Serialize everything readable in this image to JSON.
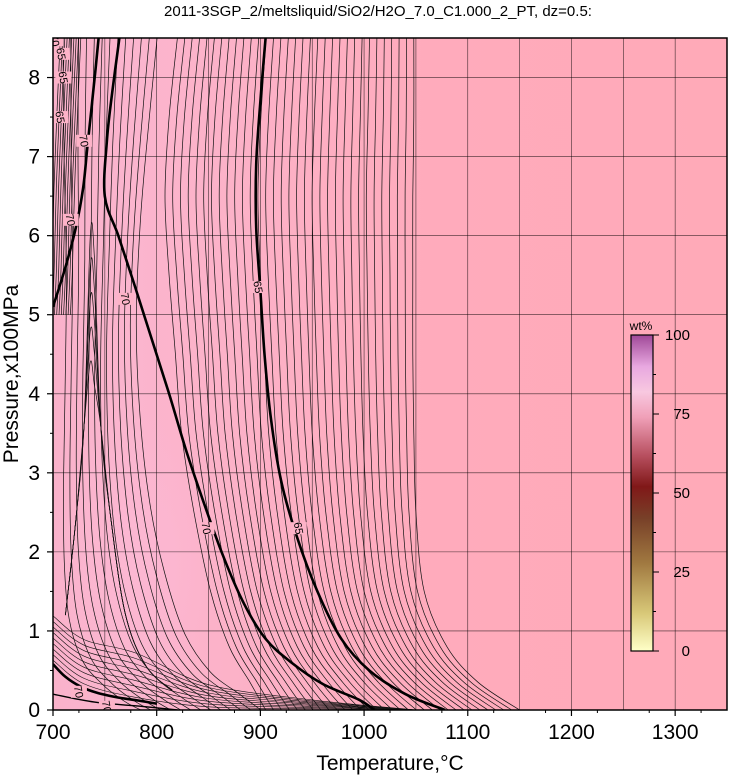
{
  "chart_data": {
    "type": "contour",
    "title": "2011-3SGP_2/meltsliquid/SiO2/H2O_7.0_C1.000_2_PT, dz=0.5:",
    "xlabel": "Temperature,°C",
    "ylabel": "Pressure,x100MPa",
    "xlim": [
      700,
      1350
    ],
    "ylim": [
      0,
      8.5
    ],
    "x_ticks": [
      "700",
      "800",
      "900",
      "1000",
      "1100",
      "1200",
      "1300"
    ],
    "y_ticks": [
      "0",
      "1",
      "2",
      "3",
      "4",
      "5",
      "6",
      "7",
      "8"
    ],
    "grid": true,
    "contour_interval": 0.5,
    "colorbar": {
      "label": "wt%",
      "range": [
        0,
        100
      ],
      "ticks": [
        "0",
        "25",
        "50",
        "75",
        "100"
      ],
      "placement": "right-inside"
    },
    "contours": [
      {
        "label": "70",
        "style": "bold",
        "points": [
          [
            700,
            5.1
          ],
          [
            712,
            5.6
          ],
          [
            722,
            6.1
          ],
          [
            729,
            6.6
          ],
          [
            733,
            7.1
          ],
          [
            737,
            7.6
          ],
          [
            741,
            8.1
          ],
          [
            744,
            8.5
          ]
        ]
      },
      {
        "label": "70",
        "style": "bold",
        "points": [
          [
            764,
            8.5
          ],
          [
            757,
            7.8
          ],
          [
            752,
            7.2
          ],
          [
            750,
            6.5
          ],
          [
            763,
            6.0
          ],
          [
            778,
            5.4
          ],
          [
            795,
            4.7
          ],
          [
            812,
            4.0
          ],
          [
            828,
            3.3
          ],
          [
            846,
            2.6
          ],
          [
            864,
            1.95
          ],
          [
            884,
            1.35
          ],
          [
            905,
            0.9
          ],
          [
            930,
            0.6
          ],
          [
            960,
            0.33
          ],
          [
            995,
            0.13
          ],
          [
            1010,
            0.0
          ]
        ]
      },
      {
        "label": "65",
        "style": "bold",
        "points": [
          [
            905,
            8.5
          ],
          [
            900,
            7.7
          ],
          [
            896,
            6.9
          ],
          [
            896,
            6.1
          ],
          [
            900,
            5.3
          ],
          [
            904,
            4.5
          ],
          [
            910,
            3.7
          ],
          [
            920,
            2.9
          ],
          [
            935,
            2.2
          ],
          [
            955,
            1.5
          ],
          [
            978,
            0.9
          ],
          [
            1005,
            0.5
          ],
          [
            1040,
            0.2
          ],
          [
            1078,
            0.0
          ]
        ]
      },
      {
        "label": "70",
        "style": "bold",
        "points": [
          [
            700,
            0.58
          ],
          [
            712,
            0.42
          ],
          [
            726,
            0.3
          ],
          [
            742,
            0.22
          ],
          [
            762,
            0.16
          ],
          [
            782,
            0.12
          ],
          [
            800,
            0.08
          ]
        ]
      },
      {
        "label": "70",
        "style": "normal",
        "points": [
          [
            700,
            0.2
          ],
          [
            740,
            0.1
          ],
          [
            790,
            0.04
          ],
          [
            820,
            0.0
          ]
        ]
      }
    ],
    "contour_labels": [
      {
        "text": "70",
        "x": 702,
        "y": 8.47
      },
      {
        "text": "65",
        "x": 708,
        "y": 8.3
      },
      {
        "text": "65",
        "x": 710,
        "y": 8.0
      },
      {
        "text": "65",
        "x": 707,
        "y": 7.5
      },
      {
        "text": "70",
        "x": 730,
        "y": 7.2
      },
      {
        "text": "70",
        "x": 717,
        "y": 6.2
      },
      {
        "text": "70",
        "x": 770,
        "y": 5.2
      },
      {
        "text": "65",
        "x": 898,
        "y": 5.35
      },
      {
        "text": "70",
        "x": 848,
        "y": 2.3
      },
      {
        "text": "65",
        "x": 937,
        "y": 2.3
      },
      {
        "text": "70",
        "x": 725,
        "y": 0.23
      },
      {
        "text": "70",
        "x": 752,
        "y": 0.04
      }
    ],
    "colors": {
      "field_low_t": "#fbb0c8",
      "field_high_t": "#ffaab8",
      "field_peak": "#fbb6d0",
      "grid": "#000000"
    }
  }
}
